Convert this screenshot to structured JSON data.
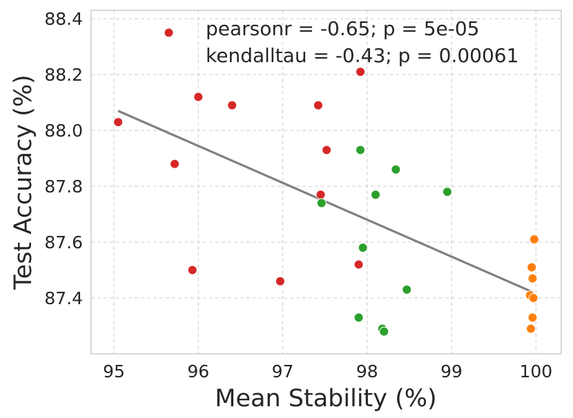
{
  "chart_data": {
    "type": "scatter",
    "xlabel": "Mean Stability (%)",
    "ylabel": "Test Accuracy (%)",
    "xlim": [
      94.73,
      100.3
    ],
    "ylim": [
      87.2,
      88.43
    ],
    "x_ticks": [
      95,
      96,
      97,
      98,
      99,
      100
    ],
    "y_ticks": [
      87.4,
      87.6,
      87.8,
      88.0,
      88.2,
      88.4
    ],
    "x_tick_labels": [
      "95",
      "96",
      "97",
      "98",
      "99",
      "100"
    ],
    "y_tick_labels": [
      "87.4",
      "87.6",
      "87.8",
      "88.0",
      "88.2",
      "88.4"
    ],
    "grid": true,
    "annotations": [
      "pearsonr = -0.65; p = 5e-05",
      "kendalltau = -0.43; p = 0.00061"
    ],
    "regression_line": {
      "x": [
        95.05,
        99.97
      ],
      "y": [
        88.07,
        87.42
      ],
      "color": "#808080"
    },
    "series": [
      {
        "name": "red",
        "color": "#d62728",
        "points": [
          [
            95.65,
            88.35
          ],
          [
            97.92,
            88.21
          ],
          [
            96.0,
            88.12
          ],
          [
            96.4,
            88.09
          ],
          [
            97.42,
            88.09
          ],
          [
            95.05,
            88.03
          ],
          [
            97.52,
            87.93
          ],
          [
            95.72,
            87.88
          ],
          [
            97.45,
            87.77
          ],
          [
            97.9,
            87.52
          ],
          [
            95.93,
            87.5
          ],
          [
            96.97,
            87.46
          ]
        ]
      },
      {
        "name": "green",
        "color": "#2ca02c",
        "points": [
          [
            97.92,
            87.93
          ],
          [
            98.34,
            87.86
          ],
          [
            98.95,
            87.78
          ],
          [
            98.1,
            87.77
          ],
          [
            97.46,
            87.74
          ],
          [
            97.95,
            87.58
          ],
          [
            98.47,
            87.43
          ],
          [
            97.9,
            87.33
          ],
          [
            98.18,
            87.29
          ],
          [
            98.2,
            87.28
          ]
        ]
      },
      {
        "name": "orange",
        "color": "#ff7f0e",
        "points": [
          [
            99.98,
            87.61
          ],
          [
            99.95,
            87.51
          ],
          [
            99.96,
            87.47
          ],
          [
            99.93,
            87.41
          ],
          [
            99.97,
            87.4
          ],
          [
            99.96,
            87.33
          ],
          [
            99.94,
            87.29
          ]
        ]
      }
    ]
  }
}
